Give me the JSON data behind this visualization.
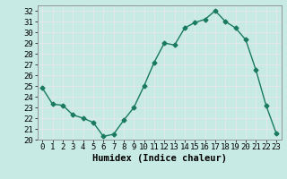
{
  "x": [
    0,
    1,
    2,
    3,
    4,
    5,
    6,
    7,
    8,
    9,
    10,
    11,
    12,
    13,
    14,
    15,
    16,
    17,
    18,
    19,
    20,
    21,
    22,
    23
  ],
  "y": [
    24.8,
    23.3,
    23.2,
    22.3,
    22.0,
    21.6,
    20.3,
    20.5,
    21.8,
    23.0,
    25.0,
    27.2,
    29.0,
    28.8,
    30.4,
    30.9,
    31.2,
    32.0,
    31.0,
    30.4,
    29.3,
    26.5,
    23.2,
    20.6
  ],
  "line_color": "#1a7a60",
  "marker": "D",
  "markersize": 2.5,
  "linewidth": 1.0,
  "xlabel": "Humidex (Indice chaleur)",
  "ylim": [
    20,
    32.5
  ],
  "xlim": [
    -0.5,
    23.5
  ],
  "yticks": [
    20,
    21,
    22,
    23,
    24,
    25,
    26,
    27,
    28,
    29,
    30,
    31,
    32
  ],
  "xticks": [
    0,
    1,
    2,
    3,
    4,
    5,
    6,
    7,
    8,
    9,
    10,
    11,
    12,
    13,
    14,
    15,
    16,
    17,
    18,
    19,
    20,
    21,
    22,
    23
  ],
  "bg_color": "#c8eae4",
  "grid_color": "#e8e8e8",
  "tick_fontsize": 6.5,
  "label_fontsize": 7.5
}
